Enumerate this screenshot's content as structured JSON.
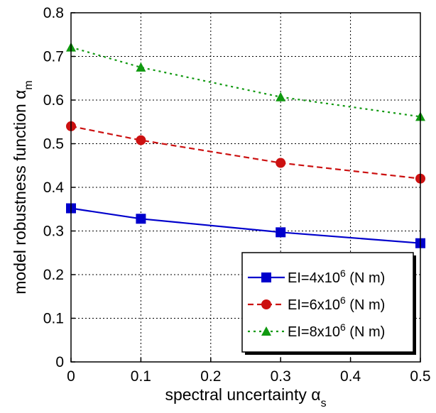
{
  "chart_data": {
    "type": "line",
    "title": "",
    "xlabel": {
      "main": "spectral uncertainty α",
      "sub": "s"
    },
    "ylabel": {
      "main": "model robustness function α",
      "sub": "m"
    },
    "xlim": [
      0,
      0.5
    ],
    "ylim": [
      0,
      0.8
    ],
    "xticks": [
      "0",
      "0.1",
      "0.2",
      "0.3",
      "0.4",
      "0.5"
    ],
    "yticks": [
      "0",
      "0.1",
      "0.2",
      "0.3",
      "0.4",
      "0.5",
      "0.6",
      "0.7",
      "0.8"
    ],
    "x_tick_values": [
      0,
      0.1,
      0.2,
      0.3,
      0.4,
      0.5
    ],
    "y_tick_values": [
      0,
      0.1,
      0.2,
      0.3,
      0.4,
      0.5,
      0.6,
      0.7,
      0.8
    ],
    "grid": true,
    "legend_position": "bottom-right",
    "series": [
      {
        "name": "EI=4x10^6 (N m)",
        "label": {
          "pre": "EI=4x10",
          "sup": "6",
          "post": " (N m)"
        },
        "color": "#0000cc",
        "line_style": "solid",
        "marker": "square",
        "x": [
          0,
          0.1,
          0.3,
          0.5
        ],
        "y": [
          0.352,
          0.328,
          0.297,
          0.272
        ]
      },
      {
        "name": "EI=6x10^6 (N m)",
        "label": {
          "pre": "EI=6x10",
          "sup": "6",
          "post": " (N m)"
        },
        "color": "#cc1111",
        "line_style": "dashed",
        "marker": "circle",
        "x": [
          0,
          0.1,
          0.3,
          0.5
        ],
        "y": [
          0.54,
          0.508,
          0.456,
          0.42
        ]
      },
      {
        "name": "EI=8x10^6 (N m)",
        "label": {
          "pre": "EI=8x10",
          "sup": "6",
          "post": " (N m)"
        },
        "color": "#109910",
        "line_style": "dotted",
        "marker": "triangle",
        "x": [
          0,
          0.1,
          0.3,
          0.5
        ],
        "y": [
          0.721,
          0.675,
          0.607,
          0.562
        ]
      }
    ]
  }
}
